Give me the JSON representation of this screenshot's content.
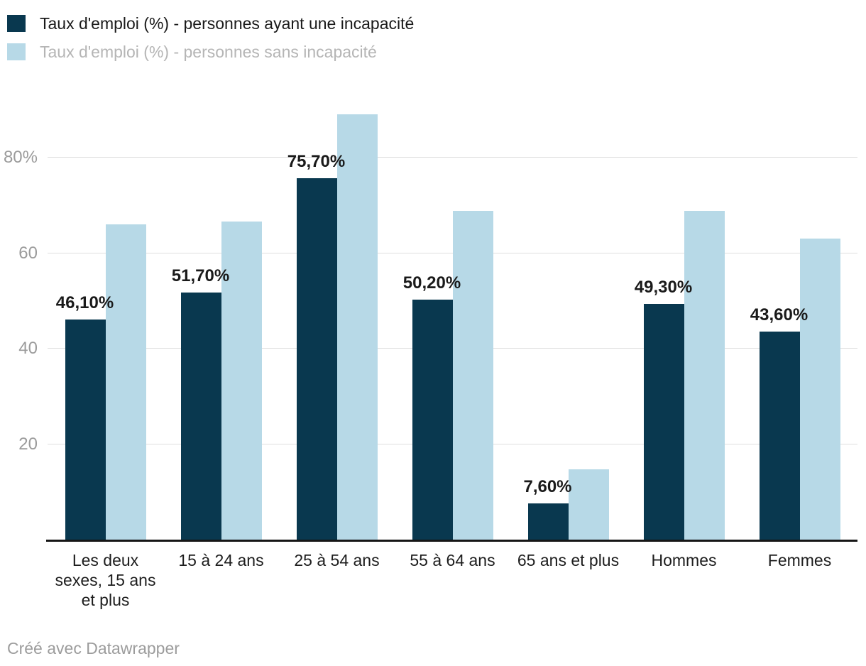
{
  "legend": {
    "items": [
      {
        "label": "Taux d'emploi (%) - personnes ayant une incapacité",
        "swatch_color": "#09384f",
        "text_color": "#1a1a1a"
      },
      {
        "label": "Taux d'emploi (%) - personnes sans incapacité",
        "swatch_color": "#b7d9e7",
        "text_color": "#b5b5b5"
      }
    ]
  },
  "chart_data": {
    "type": "bar",
    "categories": [
      "Les deux sexes, 15 ans et plus",
      "15 à 24 ans",
      "25 à 54 ans",
      "55 à 64 ans",
      "65 ans et plus",
      "Hommes",
      "Femmes"
    ],
    "series": [
      {
        "name": "Taux d'emploi (%) - personnes ayant une incapacité",
        "color": "#09384f",
        "values": [
          46.1,
          51.7,
          75.7,
          50.2,
          7.6,
          49.3,
          43.6
        ],
        "value_labels": [
          "46,10%",
          "51,70%",
          "75,70%",
          "50,20%",
          "7,60%",
          "49,30%",
          "43,60%"
        ]
      },
      {
        "name": "Taux d'emploi (%) - personnes sans incapacité",
        "color": "#b7d9e7",
        "values": [
          66.0,
          66.6,
          89.1,
          68.8,
          14.7,
          68.9,
          63.0
        ],
        "value_labels": []
      }
    ],
    "title": "",
    "xlabel": "",
    "ylabel": "",
    "ylim": [
      0,
      96
    ],
    "grid": true,
    "legend_position": "top-left",
    "y_ticks": [
      {
        "value": 20,
        "label": "20"
      },
      {
        "value": 40,
        "label": "40"
      },
      {
        "value": 60,
        "label": "60"
      },
      {
        "value": 80,
        "label": "80%"
      }
    ],
    "gridline_color": "#dedede",
    "axis_line_color": "#161616"
  },
  "footer": {
    "credit": "Créé avec Datawrapper"
  }
}
